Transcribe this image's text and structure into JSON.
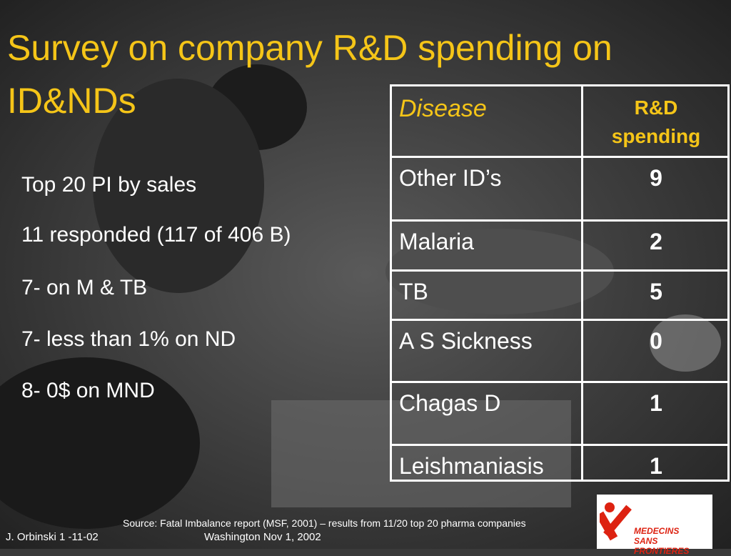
{
  "title": "Survey on company R&D spending on ID&NDs",
  "bullets": [
    "Top 20 PI by sales",
    "11 responded (117 of 406 B)",
    "7- on M  & TB",
    "7- less than 1% on ND",
    "8- 0$ on MND"
  ],
  "table": {
    "header": [
      "Disease",
      "R&D spending"
    ],
    "rows": [
      [
        "Other ID’s",
        9
      ],
      [
        "Malaria",
        2
      ],
      [
        "TB",
        5
      ],
      [
        "A S Sickness",
        0
      ],
      [
        "Chagas D",
        1
      ],
      [
        "Leishmaniasis",
        1
      ]
    ]
  },
  "source": "Source: Fatal Imbalance report (MSF, 2001) – results from 11/20 top 20 pharma companies",
  "footer": {
    "left": "J. Orbinski 1 -11-02",
    "center": "Washington Nov 1, 2002"
  },
  "logo": {
    "line1": "MEDECINS",
    "line2": "SANS FRONTIERES"
  }
}
